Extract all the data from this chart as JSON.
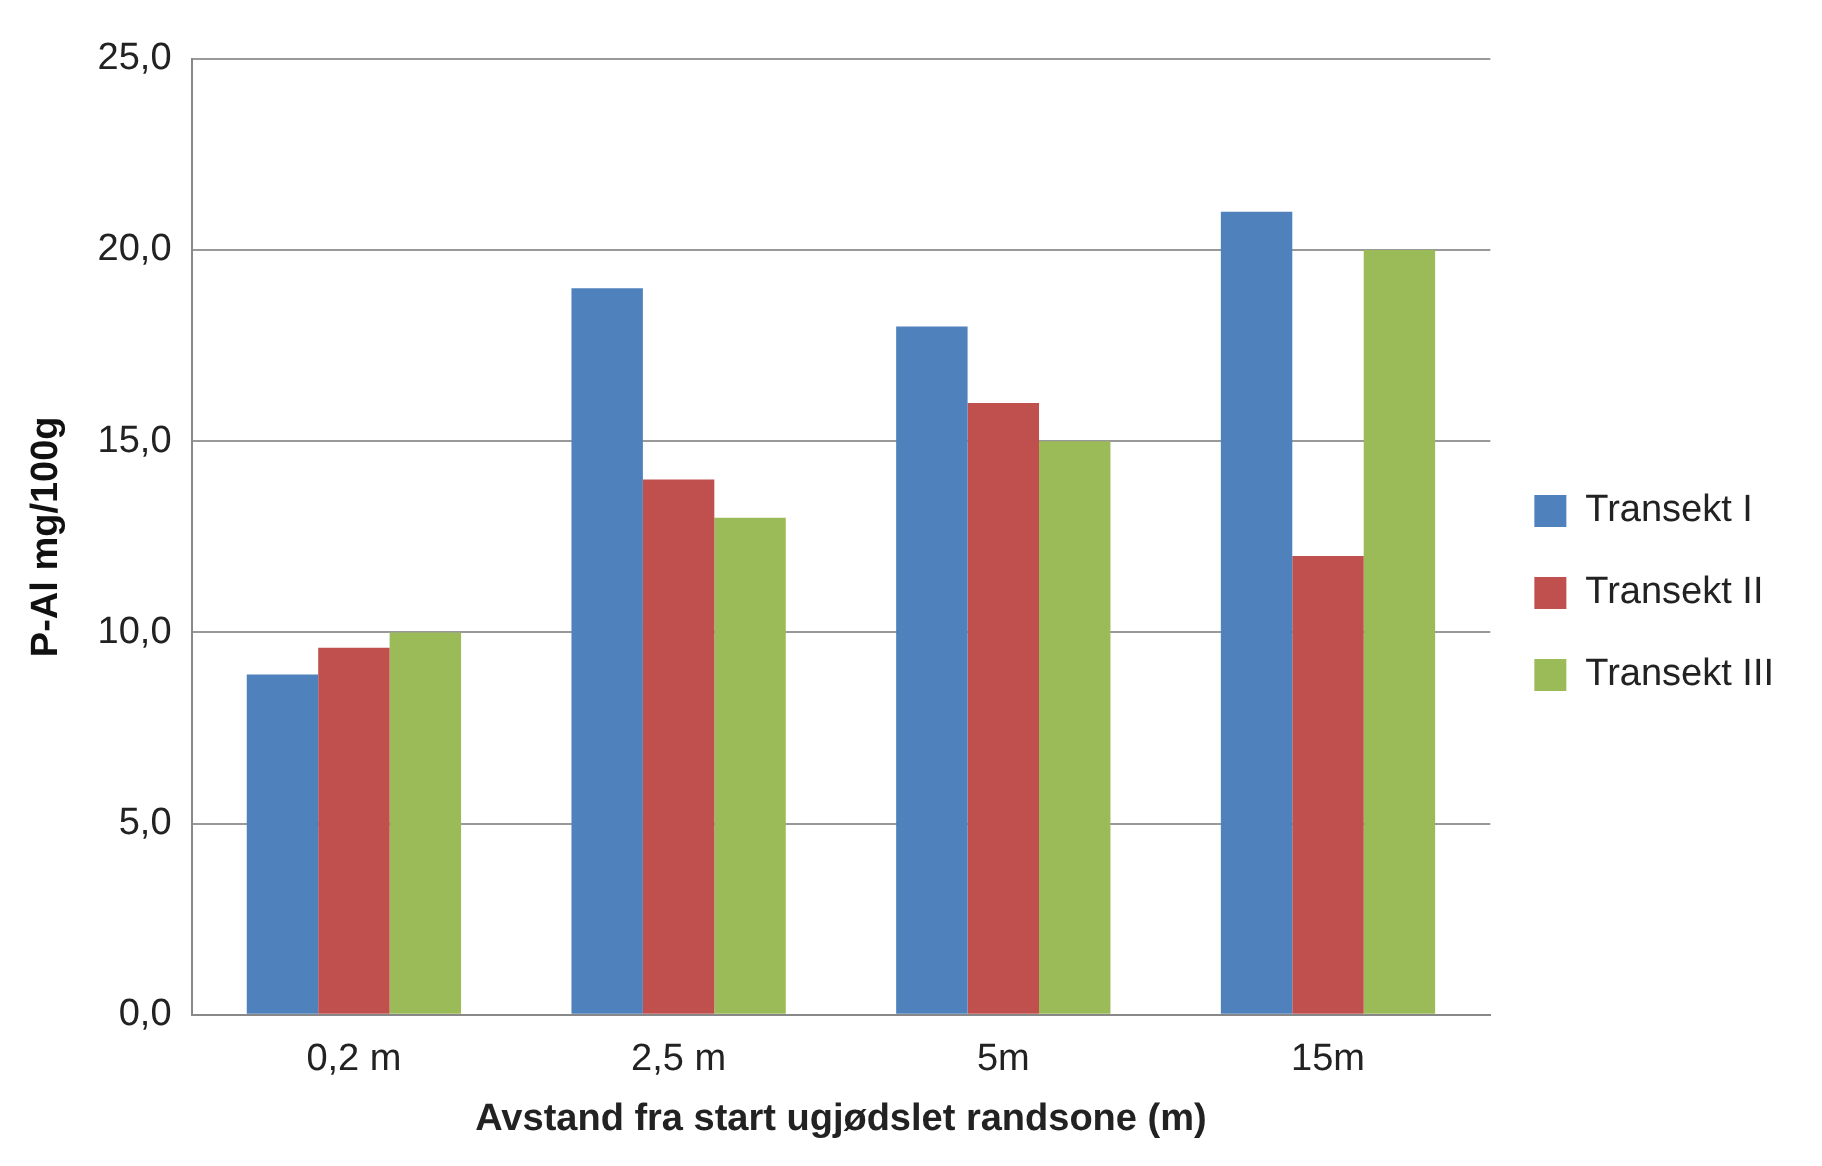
{
  "chart_data": {
    "type": "bar",
    "xlabel": "Avstand fra start ugjødslet randsone (m)",
    "ylabel": "P-Al mg/100g",
    "categories": [
      "0,2 m",
      "2,5 m",
      "5m",
      "15m"
    ],
    "series": [
      {
        "name": "Transekt I",
        "color": "#4f81bd",
        "values": [
          8.9,
          19,
          18,
          21
        ]
      },
      {
        "name": "Transekt II",
        "color": "#c0504d",
        "values": [
          9.6,
          14,
          16,
          12
        ]
      },
      {
        "name": "Transekt III",
        "color": "#9bbb59",
        "values": [
          10,
          13,
          15,
          20
        ]
      }
    ],
    "ylim": [
      0,
      25
    ],
    "yticks": [
      {
        "value": 0,
        "label": "0,0"
      },
      {
        "value": 5,
        "label": "5,0"
      },
      {
        "value": 10,
        "label": "10,0"
      },
      {
        "value": 15,
        "label": "15,0"
      },
      {
        "value": 20,
        "label": "20,0"
      },
      {
        "value": 25,
        "label": "25,0"
      }
    ],
    "grid": "y",
    "legend": "right"
  }
}
